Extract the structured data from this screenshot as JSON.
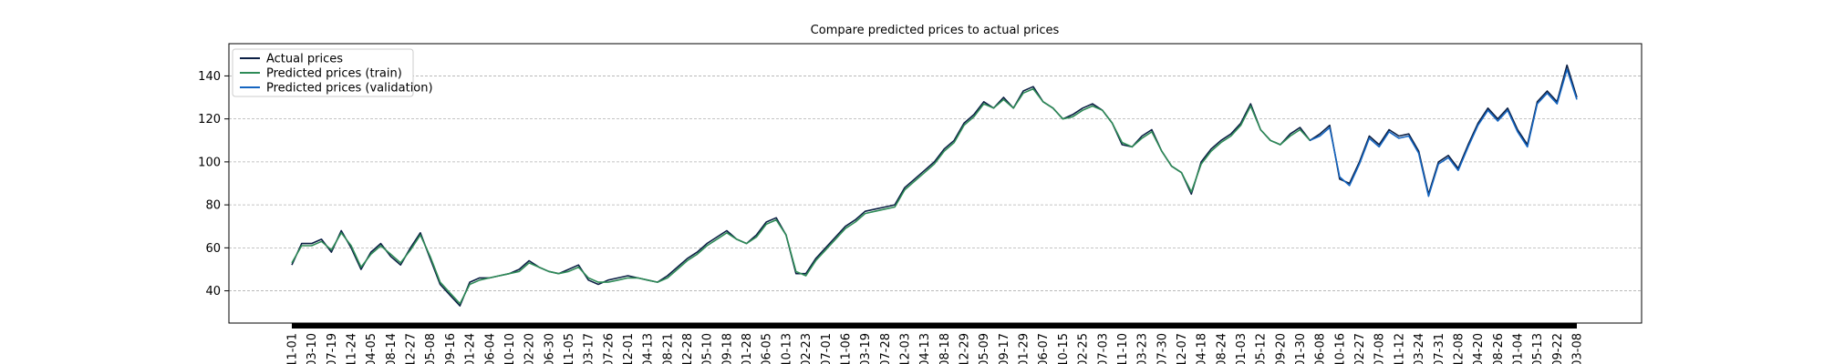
{
  "chart_data": {
    "type": "line",
    "title": "Compare predicted prices to actual prices",
    "categories": [
      "11-01",
      null,
      "03-10",
      null,
      "07-19",
      null,
      "11-24",
      null,
      "04-05",
      null,
      "08-14",
      null,
      "12-27",
      null,
      "05-08",
      null,
      "09-16",
      null,
      "01-24",
      null,
      "06-04",
      null,
      "10-10",
      null,
      "02-20",
      null,
      "06-30",
      null,
      "11-05",
      null,
      "03-17",
      null,
      "07-26",
      null,
      "12-01",
      null,
      "04-13",
      null,
      "08-21",
      null,
      "12-28",
      null,
      "05-10",
      null,
      "09-18",
      null,
      "01-28",
      null,
      "06-05",
      null,
      "10-13",
      null,
      "02-23",
      null,
      "07-01",
      null,
      "11-06",
      null,
      "03-19",
      null,
      "07-28",
      null,
      "12-03",
      null,
      "04-13",
      null,
      "08-18",
      null,
      "12-29",
      null,
      "05-09",
      null,
      "09-17",
      null,
      "01-29",
      null,
      "06-07",
      null,
      "10-15",
      null,
      "02-25",
      null,
      "07-03",
      null,
      "11-10",
      null,
      "03-23",
      null,
      "07-30",
      null,
      "12-07",
      null,
      "04-18",
      null,
      "08-24",
      null,
      "01-03",
      null,
      "05-12",
      null,
      "09-20",
      null,
      "01-30",
      null,
      "06-08",
      null,
      "10-16",
      null,
      "02-27",
      null,
      "07-08",
      null,
      "11-12",
      null,
      "03-24",
      null,
      "07-31",
      null,
      "12-08",
      null,
      "04-20",
      null,
      "08-26",
      null,
      "01-04",
      null,
      "05-13",
      null,
      "09-22",
      null,
      "03-08"
    ],
    "series": [
      {
        "name": "Actual prices",
        "color": "#0b1f44",
        "values": [
          52,
          62,
          62,
          64,
          58,
          68,
          60,
          50,
          58,
          62,
          56,
          52,
          60,
          67,
          55,
          43,
          38,
          33,
          44,
          46,
          46,
          47,
          48,
          50,
          54,
          51,
          49,
          48,
          50,
          52,
          45,
          43,
          45,
          46,
          47,
          46,
          45,
          44,
          47,
          51,
          55,
          58,
          62,
          65,
          68,
          64,
          62,
          66,
          72,
          74,
          66,
          48,
          48,
          55,
          60,
          65,
          70,
          73,
          77,
          78,
          79,
          80,
          88,
          92,
          96,
          100,
          106,
          110,
          118,
          122,
          128,
          125,
          130,
          125,
          133,
          135,
          128,
          125,
          120,
          122,
          125,
          127,
          124,
          118,
          108,
          107,
          112,
          115,
          105,
          98,
          95,
          85,
          100,
          106,
          110,
          113,
          118,
          127,
          115,
          110,
          108,
          113,
          116,
          110,
          113,
          117,
          92,
          90,
          100,
          112,
          108,
          115,
          112,
          113,
          105,
          85,
          100,
          103,
          97,
          108,
          118,
          125,
          120,
          125,
          115,
          108,
          128,
          133,
          128,
          145,
          130
        ]
      },
      {
        "name": "Predicted prices (train)",
        "color": "#2e8b57",
        "values": [
          53,
          61,
          61,
          63,
          59,
          67,
          61,
          51,
          57,
          61,
          57,
          53,
          59,
          66,
          56,
          44,
          39,
          34,
          43,
          45,
          46,
          47,
          48,
          49,
          53,
          51,
          49,
          48,
          49,
          51,
          46,
          44,
          44,
          45,
          46,
          46,
          45,
          44,
          46,
          50,
          54,
          57,
          61,
          64,
          67,
          64,
          62,
          65,
          71,
          73,
          66,
          49,
          47,
          54,
          59,
          64,
          69,
          72,
          76,
          77,
          78,
          79,
          87,
          91,
          95,
          99,
          105,
          109,
          117,
          121,
          127,
          125,
          129,
          125,
          132,
          134,
          128,
          125,
          120,
          121,
          124,
          126,
          124,
          118,
          109,
          107,
          111,
          114,
          105,
          98,
          95,
          86,
          99,
          105,
          109,
          112,
          117,
          126,
          115,
          110,
          108,
          112,
          115,
          110,
          null,
          null,
          null,
          null,
          null,
          null,
          null,
          null,
          null,
          null,
          null,
          null,
          null,
          null,
          null,
          null,
          null,
          null,
          null,
          null,
          null,
          null,
          null,
          null,
          null,
          null,
          null
        ]
      },
      {
        "name": "Predicted prices (validation)",
        "color": "#1565c0",
        "values": [
          null,
          null,
          null,
          null,
          null,
          null,
          null,
          null,
          null,
          null,
          null,
          null,
          null,
          null,
          null,
          null,
          null,
          null,
          null,
          null,
          null,
          null,
          null,
          null,
          null,
          null,
          null,
          null,
          null,
          null,
          null,
          null,
          null,
          null,
          null,
          null,
          null,
          null,
          null,
          null,
          null,
          null,
          null,
          null,
          null,
          null,
          null,
          null,
          null,
          null,
          null,
          null,
          null,
          null,
          null,
          null,
          null,
          null,
          null,
          null,
          null,
          null,
          null,
          null,
          null,
          null,
          null,
          null,
          null,
          null,
          null,
          null,
          null,
          null,
          null,
          null,
          null,
          null,
          null,
          null,
          null,
          null,
          null,
          null,
          null,
          null,
          null,
          null,
          null,
          null,
          null,
          null,
          null,
          null,
          null,
          null,
          null,
          null,
          null,
          null,
          null,
          null,
          null,
          110,
          112,
          116,
          93,
          89,
          99,
          111,
          107,
          114,
          111,
          112,
          104,
          84,
          99,
          102,
          96,
          107,
          117,
          124,
          119,
          124,
          114,
          107,
          127,
          132,
          127,
          143,
          129
        ]
      }
    ],
    "ylim": [
      25,
      155
    ],
    "yticks": [
      40,
      60,
      80,
      100,
      120,
      140
    ],
    "grid": true,
    "legend": "upper-left"
  }
}
